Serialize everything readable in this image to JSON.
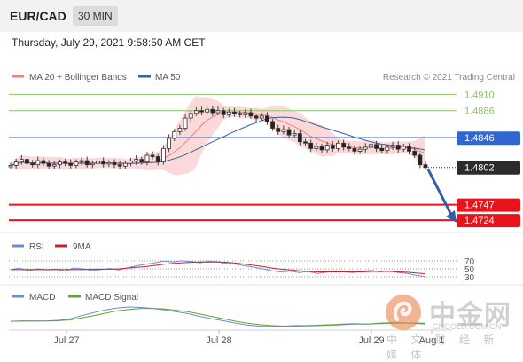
{
  "header": {
    "pair": "EUR/CAD",
    "timeframe": "30 MIN"
  },
  "datetime": "Thursday, July 29, 2021 9:58:50 AM CET",
  "colors": {
    "ma20": "#f08080",
    "band_fill": "#fbd9d9",
    "ma50": "#3a5ea8",
    "green_level": "#8cc26a",
    "blue_level": "#2f66d0",
    "red_level": "#e8141b",
    "candle_up": "#555555",
    "candle_down": "#222222",
    "rsi": "#6a8cd8",
    "rsi_9ma": "#d01d2c",
    "macd": "#6a8cd8",
    "macd_signal": "#5fa632",
    "arrow": "#2e5fa8",
    "current_label_bg": "#2b2b2b"
  },
  "chart_data": [
    {
      "type": "candlestick",
      "legend": [
        {
          "name": "MA 20 + Bollinger Bands",
          "color": "#f08080"
        },
        {
          "name": "MA 50",
          "color": "#3a5ea8"
        }
      ],
      "credit": "Research © 2021 Trading Central",
      "x_tick_labels": [
        "Jul 27",
        "Jul 28",
        "Jul 29",
        "Aug 1"
      ],
      "ylim": [
        1.4715,
        1.4925
      ],
      "levels": [
        {
          "label": "1.4910",
          "value": 1.491,
          "kind": "resistance"
        },
        {
          "label": "1.4886",
          "value": 1.4886,
          "kind": "resistance"
        },
        {
          "label": "1.4846",
          "value": 1.4846,
          "kind": "pivot"
        },
        {
          "label": "1.4802",
          "value": 1.4802,
          "kind": "current"
        },
        {
          "label": "1.4747",
          "value": 1.4747,
          "kind": "support"
        },
        {
          "label": "1.4724",
          "value": 1.4724,
          "kind": "support"
        }
      ],
      "close": [
        1.4805,
        1.481,
        1.4814,
        1.4808,
        1.4806,
        1.4812,
        1.4808,
        1.4804,
        1.4806,
        1.481,
        1.4808,
        1.4805,
        1.481,
        1.4812,
        1.4806,
        1.4808,
        1.4811,
        1.4807,
        1.4809,
        1.4806,
        1.4804,
        1.4808,
        1.4811,
        1.4814,
        1.481,
        1.482,
        1.4818,
        1.481,
        1.483,
        1.4845,
        1.4855,
        1.486,
        1.4875,
        1.4882,
        1.4886,
        1.4884,
        1.4888,
        1.4883,
        1.4886,
        1.488,
        1.4884,
        1.4882,
        1.488,
        1.4883,
        1.4878,
        1.4875,
        1.4878,
        1.487,
        1.486,
        1.4855,
        1.4858,
        1.485,
        1.4852,
        1.484,
        1.4838,
        1.483,
        1.4833,
        1.4828,
        1.4835,
        1.483,
        1.4838,
        1.4832,
        1.483,
        1.4826,
        1.4829,
        1.4832,
        1.4836,
        1.483,
        1.4827,
        1.4832,
        1.4835,
        1.4829,
        1.4833,
        1.4826,
        1.482,
        1.4806,
        1.4802
      ]
    },
    {
      "type": "line",
      "legend": [
        {
          "name": "RSI",
          "color": "#6a8cd8"
        },
        {
          "name": "9MA",
          "color": "#d01d2c"
        }
      ],
      "ylim": [
        20,
        80
      ],
      "y_tick_labels": [
        "70",
        "50",
        "30"
      ],
      "series": [
        {
          "name": "RSI",
          "values": [
            48,
            52,
            45,
            50,
            47,
            49,
            44,
            52,
            50,
            46,
            48,
            51,
            47,
            53,
            58,
            62,
            66,
            70,
            68,
            71,
            69,
            66,
            70,
            68,
            64,
            62,
            58,
            54,
            50,
            45,
            42,
            44,
            40,
            43,
            38,
            41,
            45,
            42,
            40,
            44,
            46,
            42,
            45,
            40,
            38,
            33,
            30
          ]
        },
        {
          "name": "9MA",
          "values": [
            48,
            48,
            48,
            48,
            48,
            48,
            48,
            48,
            48,
            49,
            49,
            49,
            50,
            52,
            54,
            56,
            59,
            62,
            64,
            66,
            67,
            68,
            68,
            68,
            67,
            65,
            62,
            59,
            56,
            52,
            49,
            47,
            45,
            43,
            42,
            42,
            42,
            42,
            42,
            42,
            43,
            43,
            43,
            42,
            41,
            39,
            37
          ]
        }
      ]
    },
    {
      "type": "line",
      "legend": [
        {
          "name": "MACD",
          "color": "#6a8cd8"
        },
        {
          "name": "MACD Signal",
          "color": "#5fa632"
        }
      ],
      "series": [
        {
          "name": "MACD",
          "values": [
            0,
            0.1,
            0.05,
            0.1,
            0.2,
            0.5,
            1.2,
            1.8,
            2.4,
            2.8,
            3.0,
            2.9,
            2.7,
            2.4,
            2.0,
            1.6,
            1.0,
            0.5,
            0.1,
            -0.4,
            -0.8,
            -1.0,
            -1.1,
            -1.0,
            -0.9,
            -0.9,
            -0.8,
            -0.7,
            -0.6,
            -0.5,
            -0.6,
            -0.4,
            -0.3,
            -0.3,
            -0.4,
            -0.6
          ]
        },
        {
          "name": "MACD Signal",
          "values": [
            0,
            0.05,
            0.05,
            0.08,
            0.12,
            0.3,
            0.7,
            1.2,
            1.7,
            2.2,
            2.5,
            2.7,
            2.7,
            2.6,
            2.3,
            2.0,
            1.5,
            1.0,
            0.5,
            0.0,
            -0.4,
            -0.7,
            -0.9,
            -1.0,
            -1.0,
            -0.95,
            -0.9,
            -0.8,
            -0.7,
            -0.6,
            -0.6,
            -0.5,
            -0.4,
            -0.35,
            -0.35,
            -0.4
          ]
        }
      ]
    }
  ],
  "watermark": {
    "logo": "中金网",
    "url": "CNGOLD.COM.CN",
    "tagline": "中 文 财 经 新 媒 体"
  }
}
